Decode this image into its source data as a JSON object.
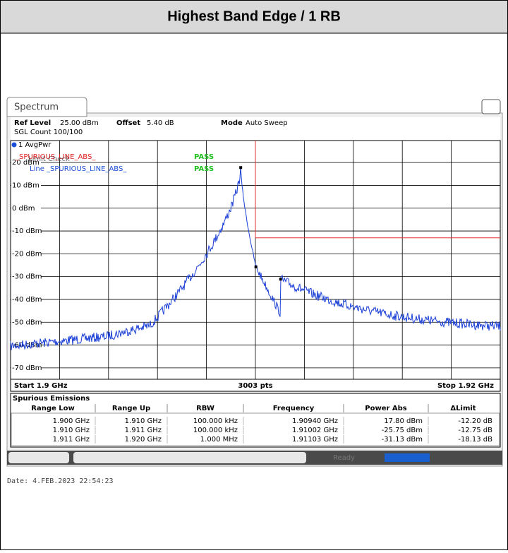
{
  "header": {
    "title": "Highest Band Edge / 1 RB"
  },
  "analyzer": {
    "tab": "Spectrum",
    "info": {
      "ref_level_label": "Ref Level",
      "ref_level": "25.00 dBm",
      "offset_label": "Offset",
      "offset": "5.40 dB",
      "mode_label": "Mode",
      "mode": "Auto Sweep",
      "count": "SGL Count 100/100"
    },
    "trace_label": "1 AvgPwr",
    "limit_check": {
      "title": "Limit Check",
      "line_name": "_SPURIOUS_LINE_ABS_",
      "result": "PASS",
      "line_label": "Line _SPURIOUS_LINE_ABS_",
      "line_result": "PASS"
    },
    "plot": {
      "ylim": [
        -75,
        25
      ],
      "xlim": [
        1.9,
        1.92
      ],
      "yticks": [
        {
          "value": 20,
          "label": "20 dBm"
        },
        {
          "value": 10,
          "label": "10 dBm"
        },
        {
          "value": 0,
          "label": "0 dBm"
        },
        {
          "value": -10,
          "label": "-10 dBm"
        },
        {
          "value": -20,
          "label": "-20 dBm"
        },
        {
          "value": -30,
          "label": "-30 dBm"
        },
        {
          "value": -40,
          "label": "-40 dBm"
        },
        {
          "value": -50,
          "label": "-50 dBm"
        },
        {
          "value": -60,
          "label": "-60 dBm"
        },
        {
          "value": -70,
          "label": "-70 dBm"
        }
      ],
      "xticks": [
        1.902,
        1.904,
        1.906,
        1.908,
        1.91,
        1.912,
        1.914,
        1.916,
        1.918
      ],
      "limit_line": {
        "x": 1.91,
        "y": -13
      },
      "markers": {
        "x": [
          1.9094,
          1.91002,
          1.91103
        ],
        "y": [
          17.8,
          -25.75,
          -31.13
        ]
      },
      "start": "Start 1.9 GHz",
      "points": "3003 pts",
      "stop": "Stop 1.92 GHz"
    },
    "table": {
      "title": "Spurious Emissions",
      "columns": [
        "Range Low",
        "Range Up",
        "RBW",
        "Frequency",
        "Power Abs",
        "ΔLimit"
      ],
      "rows": [
        [
          "1.900 GHz",
          "1.910 GHz",
          "100.000 kHz",
          "1.90940 GHz",
          "17.80 dBm",
          "-12.20 dB"
        ],
        [
          "1.910 GHz",
          "1.911 GHz",
          "100.000 kHz",
          "1.91002 GHz",
          "-25.75 dBm",
          "-12.75 dB"
        ],
        [
          "1.911 GHz",
          "1.920 GHz",
          "1.000 MHz",
          "1.91103 GHz",
          "-31.13 dBm",
          "-18.13 dB"
        ]
      ]
    },
    "status": "Ready",
    "date": "Date: 4.FEB.2023  22:54:23"
  }
}
